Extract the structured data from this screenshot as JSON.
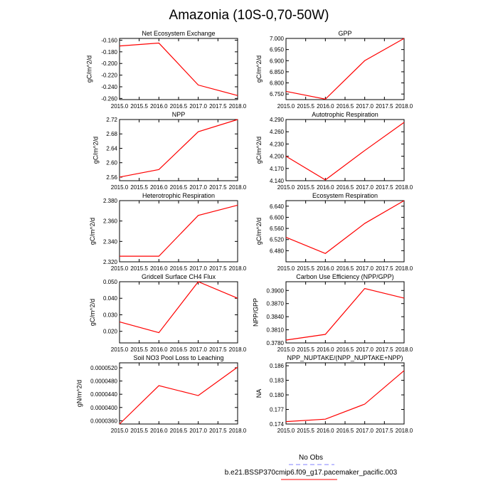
{
  "figure": {
    "title": "Amazonia (10S-0,70-50W)"
  },
  "legend": {
    "items": [
      {
        "label": "No Obs",
        "color": "#8080ff",
        "dash": true
      },
      {
        "label": "b.e21.BSSP370cmip6.f09_g17.pacemaker_pacific.003",
        "color": "#ff0000",
        "dash": false
      }
    ]
  },
  "chart_data": [
    {
      "type": "line",
      "title": "Net Ecosystem Exchange",
      "ylabel": "gC/m^2/d",
      "x": [
        2015,
        2016,
        2017,
        2018
      ],
      "y": [
        -0.17,
        -0.165,
        -0.237,
        -0.255
      ],
      "xlim": [
        2015,
        2018
      ],
      "ylim": [
        -0.262,
        -0.157
      ],
      "yticks": [
        -0.16,
        -0.18,
        -0.2,
        -0.22,
        -0.24,
        -0.26
      ],
      "ytick_labels": [
        "-0.160",
        "-0.180",
        "-0.200",
        "-0.220",
        "-0.240",
        "-0.260"
      ],
      "xticks": [
        2015,
        2015.5,
        2016,
        2016.5,
        2017,
        2017.5,
        2018
      ],
      "xtick_labels": [
        "2015.0",
        "2015.5",
        "2016.0",
        "2016.5",
        "2017.0",
        "2017.5",
        "2018.0"
      ]
    },
    {
      "type": "line",
      "title": "GPP",
      "ylabel": "gC/m^2/d",
      "x": [
        2015,
        2016,
        2017,
        2018
      ],
      "y": [
        6.762,
        6.727,
        6.9,
        7.0
      ],
      "xlim": [
        2015,
        2018
      ],
      "ylim": [
        6.725,
        7.0
      ],
      "yticks": [
        6.75,
        6.8,
        6.85,
        6.9,
        6.95,
        7.0
      ],
      "ytick_labels": [
        "6.750",
        "6.800",
        "6.850",
        "6.900",
        "6.950",
        "7.000"
      ],
      "xticks": [
        2015,
        2015.5,
        2016,
        2016.5,
        2017,
        2017.5,
        2018
      ],
      "xtick_labels": [
        "2015.0",
        "2015.5",
        "2016.0",
        "2016.5",
        "2017.0",
        "2017.5",
        "2018.0"
      ]
    },
    {
      "type": "line",
      "title": "NPP",
      "ylabel": "gC/m^2/d",
      "x": [
        2015,
        2016,
        2017,
        2018
      ],
      "y": [
        2.56,
        2.581,
        2.686,
        2.72
      ],
      "xlim": [
        2015,
        2018
      ],
      "ylim": [
        2.55,
        2.72
      ],
      "yticks": [
        2.56,
        2.6,
        2.64,
        2.68,
        2.72
      ],
      "ytick_labels": [
        "2.56",
        "2.60",
        "2.64",
        "2.68",
        "2.72"
      ],
      "xticks": [
        2015,
        2015.5,
        2016,
        2016.5,
        2017,
        2017.5,
        2018
      ],
      "xtick_labels": [
        "2015.0",
        "2015.5",
        "2016.0",
        "2016.5",
        "2017.0",
        "2017.5",
        "2018.0"
      ]
    },
    {
      "type": "line",
      "title": "Autotrophic Respiration",
      "ylabel": "gC/m^2/d",
      "x": [
        2015,
        2016,
        2017,
        2018
      ],
      "y": [
        4.2,
        4.142,
        4.214,
        4.283
      ],
      "xlim": [
        2015,
        2018
      ],
      "ylim": [
        4.14,
        4.29
      ],
      "yticks": [
        4.14,
        4.17,
        4.2,
        4.23,
        4.26,
        4.29
      ],
      "ytick_labels": [
        "4.140",
        "4.170",
        "4.200",
        "4.230",
        "4.260",
        "4.290"
      ],
      "xticks": [
        2015,
        2015.5,
        2016,
        2016.5,
        2017,
        2017.5,
        2018
      ],
      "xtick_labels": [
        "2015.0",
        "2015.5",
        "2016.0",
        "2016.5",
        "2017.0",
        "2017.5",
        "2018.0"
      ]
    },
    {
      "type": "line",
      "title": "Heterotrophic Respiration",
      "ylabel": "gC/m^2/d",
      "x": [
        2015,
        2016,
        2017,
        2018
      ],
      "y": [
        2.3255,
        2.3255,
        2.3655,
        2.3755
      ],
      "xlim": [
        2015,
        2018
      ],
      "ylim": [
        2.32,
        2.38
      ],
      "yticks": [
        2.32,
        2.34,
        2.36,
        2.38
      ],
      "ytick_labels": [
        "2.320",
        "2.340",
        "2.360",
        "2.380"
      ],
      "xticks": [
        2015,
        2015.5,
        2016,
        2016.5,
        2017,
        2017.5,
        2018
      ],
      "xtick_labels": [
        "2015.0",
        "2015.5",
        "2016.0",
        "2016.5",
        "2017.0",
        "2017.5",
        "2018.0"
      ]
    },
    {
      "type": "line",
      "title": "Ecosystem Respiration",
      "ylabel": "gC/m^2/d",
      "x": [
        2015,
        2016,
        2017,
        2018
      ],
      "y": [
        6.528,
        6.47,
        6.578,
        6.66
      ],
      "xlim": [
        2015,
        2018
      ],
      "ylim": [
        6.44,
        6.66
      ],
      "yticks": [
        6.48,
        6.52,
        6.56,
        6.6,
        6.64
      ],
      "ytick_labels": [
        "6.480",
        "6.520",
        "6.560",
        "6.600",
        "6.640"
      ],
      "xticks": [
        2015,
        2015.5,
        2016,
        2016.5,
        2017,
        2017.5,
        2018
      ],
      "xtick_labels": [
        "2015.0",
        "2015.5",
        "2016.0",
        "2016.5",
        "2017.0",
        "2017.5",
        "2018.0"
      ]
    },
    {
      "type": "line",
      "title": "Gridcell Surface CH4 Flux",
      "ylabel": "gC/m^2/d",
      "x": [
        2015,
        2016,
        2017,
        2018
      ],
      "y": [
        0.0257,
        0.0192,
        0.05,
        0.04
      ],
      "xlim": [
        2015,
        2018
      ],
      "ylim": [
        0.013,
        0.05
      ],
      "yticks": [
        0.02,
        0.03,
        0.04,
        0.05
      ],
      "ytick_labels": [
        "0.020",
        "0.030",
        "0.040",
        "0.050"
      ],
      "xticks": [
        2015,
        2015.5,
        2016,
        2016.5,
        2017,
        2017.5,
        2018
      ],
      "xtick_labels": [
        "2015.0",
        "2015.5",
        "2016.0",
        "2016.5",
        "2017.0",
        "2017.5",
        "2018.0"
      ]
    },
    {
      "type": "line",
      "title": "Carbon Use Efficiency (NPP/GPP)",
      "ylabel": "NPP/GPP",
      "x": [
        2015,
        2016,
        2017,
        2018
      ],
      "y": [
        0.37865,
        0.37995,
        0.39045,
        0.38825
      ],
      "xlim": [
        2015,
        2018
      ],
      "ylim": [
        0.378,
        0.392
      ],
      "yticks": [
        0.378,
        0.381,
        0.384,
        0.387,
        0.39
      ],
      "ytick_labels": [
        "0.3780",
        "0.3810",
        "0.3840",
        "0.3870",
        "0.3900"
      ],
      "xticks": [
        2015,
        2015.5,
        2016,
        2016.5,
        2017,
        2017.5,
        2018
      ],
      "xtick_labels": [
        "2015.0",
        "2015.5",
        "2016.0",
        "2016.5",
        "2017.0",
        "2017.5",
        "2018.0"
      ]
    },
    {
      "type": "line",
      "title": "Soil NO3 Pool Loss to Leaching",
      "ylabel": "gN/m^2/d",
      "x": [
        2015,
        2016,
        2017,
        2018
      ],
      "y": [
        3.5e-05,
        4.66e-05,
        4.36e-05,
        5.22e-05
      ],
      "xlim": [
        2015,
        2018
      ],
      "ylim": [
        3.5e-05,
        5.35e-05
      ],
      "yticks": [
        3.6e-05,
        4e-05,
        4.4e-05,
        4.8e-05,
        5.2e-05
      ],
      "ytick_labels": [
        "0.0000360",
        "0.0000400",
        "0.0000440",
        "0.0000480",
        "0.0000520"
      ],
      "xticks": [
        2015,
        2015.5,
        2016,
        2016.5,
        2017,
        2017.5,
        2018
      ],
      "xtick_labels": [
        "2015.0",
        "2015.5",
        "2016.0",
        "2016.5",
        "2017.0",
        "2017.5",
        "2018.0"
      ]
    },
    {
      "type": "line",
      "title": "NPP_NUPTAKE/(NPP_NUPTAKE+NPP)",
      "ylabel": "NA",
      "x": [
        2015,
        2016,
        2017,
        2018
      ],
      "y": [
        0.1745,
        0.175,
        0.1781,
        0.185
      ],
      "xlim": [
        2015,
        2018
      ],
      "ylim": [
        0.174,
        0.1866
      ],
      "yticks": [
        0.174,
        0.177,
        0.18,
        0.183,
        0.186
      ],
      "ytick_labels": [
        "0.174",
        "0.177",
        "0.180",
        "0.183",
        "0.186"
      ],
      "xticks": [
        2015,
        2015.5,
        2016,
        2016.5,
        2017,
        2017.5,
        2018
      ],
      "xtick_labels": [
        "2015.0",
        "2015.5",
        "2016.0",
        "2016.5",
        "2017.0",
        "2017.5",
        "2018.0"
      ]
    }
  ]
}
